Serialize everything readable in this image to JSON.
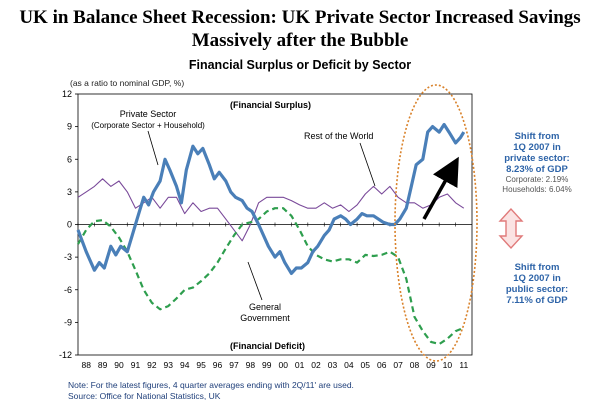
{
  "title_line1": "UK in Balance Sheet Recession: UK Private Sector Increased Savings",
  "title_line2": "Massively after the Bubble",
  "chart_data": {
    "type": "line",
    "title": "Financial Surplus or Deficit by Sector",
    "y_unit_note": "(as a ratio to nominal GDP, %)",
    "ylim": [
      -12,
      12
    ],
    "y_ticks": [
      "12",
      "9",
      "6",
      "3",
      "0",
      "-3",
      "-6",
      "-9",
      "-12"
    ],
    "x_tick_labels": [
      "88",
      "89",
      "90",
      "91",
      "92",
      "93",
      "94",
      "95",
      "96",
      "97",
      "98",
      "99",
      "00",
      "01",
      "02",
      "03",
      "04",
      "05",
      "06",
      "07",
      "08",
      "09",
      "10",
      "11"
    ],
    "xlim": [
      1988.0,
      2012.0
    ],
    "grid": false,
    "annotations": {
      "surplus": "(Financial Surplus)",
      "deficit": "(Financial Deficit)",
      "private_label_1": "Private Sector",
      "private_label_2": "(Corporate Sector + Household)",
      "row_label": "Rest of the World",
      "gov_label_1": "General",
      "gov_label_2": "Government"
    },
    "series": [
      {
        "name": "Private Sector",
        "color": "#4a7fb8",
        "style": "solid",
        "x": [
          1988.0,
          1988.5,
          1989.0,
          1989.3,
          1989.6,
          1990.0,
          1990.3,
          1990.6,
          1991.0,
          1991.3,
          1991.6,
          1992.0,
          1992.3,
          1992.6,
          1993.0,
          1993.3,
          1993.6,
          1994.0,
          1994.3,
          1994.6,
          1995.0,
          1995.3,
          1995.6,
          1996.0,
          1996.3,
          1996.6,
          1997.0,
          1997.3,
          1997.6,
          1998.0,
          1998.3,
          1998.6,
          1999.0,
          1999.3,
          1999.6,
          2000.0,
          2000.3,
          2000.6,
          2001.0,
          2001.3,
          2001.6,
          2002.0,
          2002.3,
          2002.6,
          2003.0,
          2003.3,
          2003.6,
          2004.0,
          2004.3,
          2004.6,
          2005.0,
          2005.3,
          2005.6,
          2006.0,
          2006.3,
          2006.6,
          2007.0,
          2007.3,
          2007.6,
          2008.0,
          2008.3,
          2008.6,
          2009.0,
          2009.3,
          2009.6,
          2010.0,
          2010.3,
          2010.6,
          2011.0,
          2011.3,
          2011.5
        ],
        "values": [
          -0.5,
          -2.5,
          -4.2,
          -3.5,
          -4.0,
          -2.0,
          -2.8,
          -2.0,
          -2.5,
          -1.0,
          0.5,
          2.5,
          1.8,
          3.0,
          4.0,
          6.0,
          5.0,
          3.5,
          2.0,
          5.0,
          7.2,
          6.5,
          7.0,
          5.5,
          4.2,
          4.8,
          4.0,
          3.0,
          2.5,
          2.2,
          1.5,
          1.2,
          0.0,
          -1.0,
          -2.0,
          -3.0,
          -2.5,
          -3.5,
          -4.5,
          -4.0,
          -4.0,
          -3.5,
          -2.5,
          -2.0,
          -1.0,
          -0.5,
          0.5,
          0.8,
          0.5,
          0.0,
          0.5,
          1.0,
          0.8,
          0.8,
          0.5,
          0.2,
          0.0,
          0.0,
          0.5,
          1.5,
          3.5,
          5.5,
          6.0,
          8.5,
          9.0,
          8.5,
          9.2,
          8.5,
          7.5,
          8.0,
          8.5
        ]
      },
      {
        "name": "Rest of the World",
        "color": "#7a4a9a",
        "style": "solid",
        "x": [
          1988.0,
          1988.5,
          1989.0,
          1989.5,
          1990.0,
          1990.5,
          1991.0,
          1991.5,
          1992.0,
          1992.5,
          1993.0,
          1993.5,
          1994.0,
          1994.5,
          1995.0,
          1995.5,
          1996.0,
          1996.5,
          1997.0,
          1997.5,
          1998.0,
          1998.5,
          1999.0,
          1999.5,
          2000.0,
          2000.5,
          2001.0,
          2001.5,
          2002.0,
          2002.5,
          2003.0,
          2003.5,
          2004.0,
          2004.5,
          2005.0,
          2005.5,
          2006.0,
          2006.5,
          2007.0,
          2007.5,
          2008.0,
          2008.5,
          2009.0,
          2009.5,
          2010.0,
          2010.5,
          2011.0,
          2011.5
        ],
        "values": [
          2.5,
          3.0,
          3.5,
          4.2,
          3.5,
          4.0,
          3.0,
          1.5,
          2.0,
          2.5,
          1.5,
          2.5,
          2.5,
          1.0,
          2.0,
          1.2,
          1.5,
          1.5,
          0.5,
          -0.5,
          -1.5,
          0.0,
          2.0,
          2.5,
          2.5,
          2.5,
          2.2,
          1.8,
          1.5,
          1.5,
          2.0,
          1.5,
          1.8,
          1.2,
          1.8,
          2.8,
          3.5,
          2.8,
          3.5,
          2.5,
          2.0,
          2.0,
          1.5,
          1.8,
          2.5,
          2.8,
          2.0,
          1.5
        ]
      },
      {
        "name": "General Government",
        "color": "#2e9e4e",
        "style": "dashed",
        "x": [
          1988.0,
          1988.5,
          1989.0,
          1989.5,
          1990.0,
          1990.5,
          1991.0,
          1991.5,
          1992.0,
          1992.5,
          1993.0,
          1993.5,
          1994.0,
          1994.5,
          1995.0,
          1995.5,
          1996.0,
          1996.5,
          1997.0,
          1997.5,
          1998.0,
          1998.5,
          1999.0,
          1999.5,
          2000.0,
          2000.5,
          2001.0,
          2001.5,
          2002.0,
          2002.5,
          2003.0,
          2003.5,
          2004.0,
          2004.5,
          2005.0,
          2005.5,
          2006.0,
          2006.5,
          2007.0,
          2007.5,
          2008.0,
          2008.5,
          2009.0,
          2009.5,
          2010.0,
          2010.5,
          2011.0,
          2011.5
        ],
        "values": [
          -1.8,
          -0.5,
          0.3,
          0.4,
          -0.2,
          -1.2,
          -2.5,
          -4.2,
          -6.0,
          -7.2,
          -7.8,
          -7.5,
          -6.8,
          -6.0,
          -5.8,
          -5.2,
          -4.5,
          -3.5,
          -2.2,
          -1.0,
          0.0,
          0.2,
          0.5,
          1.2,
          1.5,
          1.5,
          0.8,
          -0.5,
          -2.0,
          -2.8,
          -3.2,
          -3.4,
          -3.2,
          -3.2,
          -3.5,
          -2.8,
          -2.9,
          -2.8,
          -2.5,
          -3.0,
          -5.0,
          -8.5,
          -9.8,
          -10.8,
          -11.0,
          -10.5,
          -9.8,
          -9.5
        ]
      }
    ]
  },
  "side_notes": {
    "private": {
      "l1": "Shift from",
      "l2": "1Q 2007 in",
      "l3": "private sector:",
      "l4": "8.23% of GDP",
      "l5": "Corporate: 2.19%",
      "l6": "Households: 6.04%"
    },
    "public": {
      "l1": "Shift from",
      "l2": "1Q 2007 in",
      "l3": "public sector:",
      "l4": "7.11% of GDP"
    }
  },
  "notes": {
    "line1": "Note: For the latest figures, 4 quarter averages ending with 2Q/11' are used.",
    "line2": "Source: Office for National Statistics, UK"
  },
  "colors": {
    "private": "#4a7fb8",
    "rest_of_world": "#7a4a9a",
    "government": "#2e9e4e",
    "highlight_oval": "#d9822b",
    "arrow": "#000000",
    "double_arrow": "#e07a7a",
    "side_text": "#2e64a8"
  }
}
